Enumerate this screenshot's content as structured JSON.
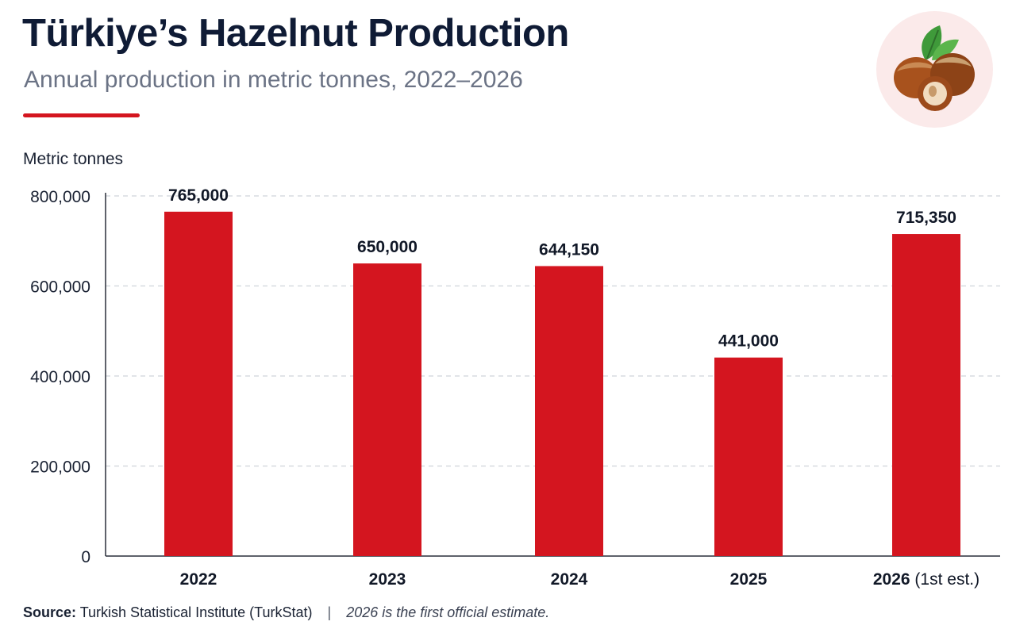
{
  "header": {
    "title": "Türkiye’s Hazelnut Production",
    "subtitle": "Annual production in metric tonnes, 2022–2026"
  },
  "badge": {
    "icon": "hazelnut-icon"
  },
  "colors": {
    "bar": "#d4151f",
    "accent": "#d4151f",
    "text": "#0f1b35",
    "grid": "#cfd3da"
  },
  "chart_data": {
    "type": "bar",
    "ylabel": "Metric tonnes",
    "xlabel": "",
    "categories": [
      "2022",
      "2023",
      "2024",
      "2025",
      "2026"
    ],
    "category_suffixes": [
      "",
      "",
      "",
      "",
      "(1st est.)"
    ],
    "values": [
      765000,
      650000,
      644150,
      441000,
      715350
    ],
    "value_labels": [
      "765,000",
      "650,000",
      "644,150",
      "441,000",
      "715,350"
    ],
    "ylim": [
      0,
      800000
    ],
    "yticks": [
      0,
      200000,
      400000,
      600000,
      800000
    ],
    "ytick_labels": [
      "0",
      "200,000",
      "400,000",
      "600,000",
      "800,000"
    ],
    "grid": true,
    "legend": "none"
  },
  "footer": {
    "source_label": "Source:",
    "source_text": "Turkish Statistical Institute (TurkStat)",
    "separator": "|",
    "note": "2026 is the first official estimate."
  }
}
